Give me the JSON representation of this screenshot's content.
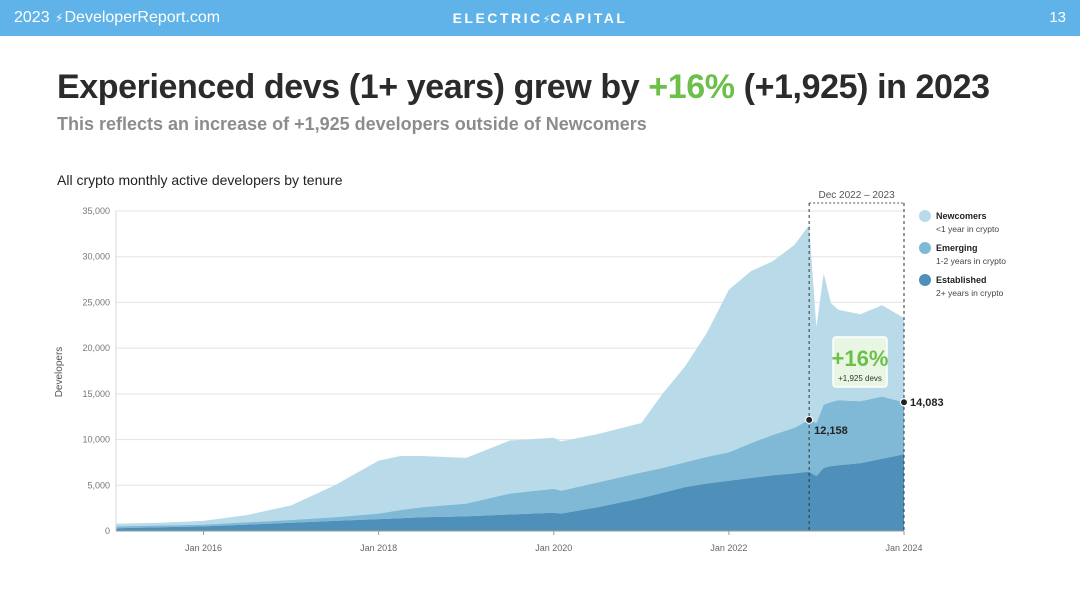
{
  "header": {
    "site": "2023 ⚡ DeveloperReport.com",
    "site_year": "2023",
    "site_name": "DeveloperReport.com",
    "brand_left": "ELECTRIC",
    "brand_right": "CAPITAL",
    "page_number": "13"
  },
  "headline": {
    "prefix": "Experienced devs (1+ years) grew by ",
    "accent": "+16%",
    "suffix": " (+1,925) in 2023"
  },
  "subhead": "This reflects an increase of +1,925 developers outside of Newcomers",
  "chart_title": "All crypto monthly active developers by tenure",
  "watermark": "ELECTRIC⚡CAPITAL",
  "colors": {
    "topbar": "#5fb3e8",
    "accent_green": "#6cc04a",
    "newcomers": "#b9dbe9",
    "emerging": "#80b9d6",
    "established": "#4f90ba"
  },
  "chart_data": {
    "type": "area",
    "stacked": true,
    "title": "All crypto monthly active developers by tenure",
    "ylabel": "Developers",
    "xlabel": "",
    "ylim": [
      0,
      35000
    ],
    "xlim": [
      "2015-01",
      "2024-01"
    ],
    "yticks": [
      "0",
      "5,000",
      "10,000",
      "15,000",
      "20,000",
      "25,000",
      "30,000",
      "35,000"
    ],
    "xticks": [
      "Jan 2016",
      "Jan 2018",
      "Jan 2020",
      "Jan 2022",
      "Jan 2024"
    ],
    "grid": true,
    "legend_position": "right",
    "x": [
      "2015-01",
      "2015-07",
      "2016-01",
      "2016-07",
      "2017-01",
      "2017-07",
      "2018-01",
      "2018-04",
      "2018-07",
      "2019-01",
      "2019-07",
      "2020-01",
      "2020-02",
      "2020-07",
      "2021-01",
      "2021-04",
      "2021-07",
      "2021-10",
      "2022-01",
      "2022-04",
      "2022-07",
      "2022-10",
      "2022-12",
      "2023-01",
      "2023-02",
      "2023-03",
      "2023-04",
      "2023-07",
      "2023-10",
      "2024-01"
    ],
    "series": [
      {
        "name": "Established",
        "description": "2+ years in crypto",
        "color": "#4f90ba",
        "values": [
          300,
          400,
          500,
          700,
          900,
          1100,
          1300,
          1400,
          1500,
          1600,
          1800,
          2000,
          1900,
          2600,
          3600,
          4200,
          4800,
          5200,
          5500,
          5800,
          6100,
          6300,
          6500,
          6000,
          6900,
          7100,
          7200,
          7400,
          7900,
          8400
        ]
      },
      {
        "name": "Emerging",
        "description": "1-2 years in crypto",
        "color": "#80b9d6",
        "values": [
          200,
          200,
          200,
          250,
          300,
          400,
          600,
          900,
          1100,
          1400,
          2300,
          2600,
          2500,
          2700,
          2800,
          2700,
          2700,
          2900,
          3100,
          3800,
          4400,
          5000,
          5658,
          5800,
          6900,
          7000,
          7100,
          6800,
          6800,
          5683
        ]
      },
      {
        "name": "Newcomers",
        "description": "<1 year in crypto",
        "color": "#b9dbe9",
        "values": [
          300,
          300,
          400,
          800,
          1600,
          3500,
          5800,
          5900,
          5600,
          5000,
          5800,
          5600,
          5400,
          5300,
          5400,
          8200,
          10500,
          13600,
          17800,
          18800,
          19000,
          20000,
          21300,
          10500,
          14400,
          10800,
          9900,
          9500,
          10000,
          9200
        ]
      }
    ],
    "period_marker": {
      "label": "Dec 2022 – 2023",
      "start": "2022-12",
      "end": "2024-01"
    },
    "annotations": [
      {
        "label": "12,158",
        "x": "2022-12",
        "value": 12158
      },
      {
        "label": "14,083",
        "x": "2024-01",
        "value": 14083
      }
    ],
    "callout": {
      "big": "+16%",
      "small": "+1,925 devs"
    }
  }
}
